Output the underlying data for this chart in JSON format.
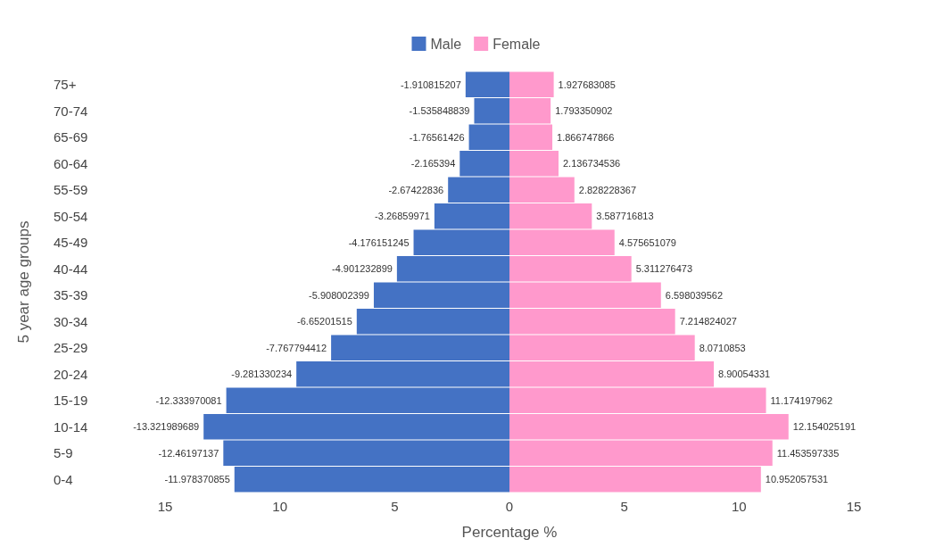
{
  "chart_data": {
    "type": "bar",
    "orientation": "horizontal",
    "xlabel": "Percentage %",
    "ylabel": "5 year age groups",
    "categories": [
      "75+",
      "70-74",
      "65-69",
      "60-64",
      "55-59",
      "50-54",
      "45-49",
      "40-44",
      "35-39",
      "30-34",
      "25-29",
      "20-24",
      "15-19",
      "10-14",
      "5-9",
      "0-4"
    ],
    "series": [
      {
        "name": "Male",
        "color": "#4472c4",
        "values": [
          -1.910815207,
          -1.535848839,
          -1.76561426,
          -2.165394,
          -2.67422836,
          -3.26859971,
          -4.176151245,
          -4.901232899,
          -5.908002399,
          -6.65201515,
          -7.767794412,
          -9.281330234,
          -12.333970081,
          -13.321989689,
          -12.46197137,
          -11.978370855
        ]
      },
      {
        "name": "Female",
        "color": "#ff99cc",
        "values": [
          1.927683085,
          1.793350902,
          1.866747866,
          2.136734536,
          2.828228367,
          3.587716813,
          4.575651079,
          5.311276473,
          6.598039562,
          7.214824027,
          8.0710853,
          8.90054331,
          11.174197962,
          12.154025191,
          11.453597335,
          10.952057531
        ]
      }
    ],
    "xlim": [
      -15,
      15
    ],
    "xticks": [
      {
        "value": -15,
        "label": "15"
      },
      {
        "value": -10,
        "label": "10"
      },
      {
        "value": -5,
        "label": "5"
      },
      0,
      5,
      10,
      15
    ],
    "data_labels": true,
    "stacked": true,
    "grid": false,
    "legend": "top"
  }
}
